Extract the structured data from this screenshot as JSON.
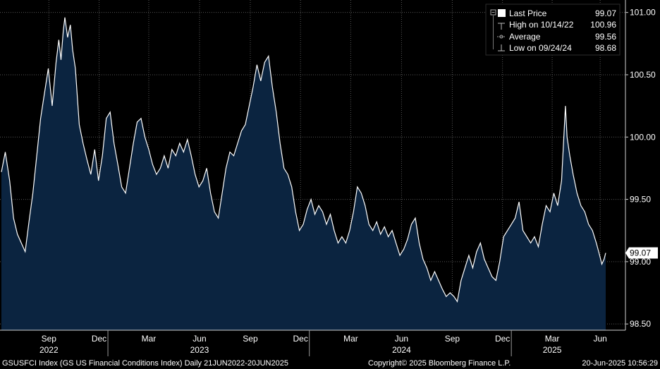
{
  "chart_data": {
    "type": "area",
    "title": "",
    "xlabel": "",
    "ylabel": "",
    "ylim": [
      98.45,
      101.1
    ],
    "y_ticks": [
      "101.00",
      "100.50",
      "100.00",
      "99.50",
      "99.00",
      "98.50"
    ],
    "y_tick_values": [
      101.0,
      100.5,
      100.0,
      99.5,
      99.0,
      98.5
    ],
    "x_range": [
      "2022-06-21",
      "2025-06-20"
    ],
    "month_ticks": [
      {
        "label": "Sep",
        "date": "2022-09-15"
      },
      {
        "label": "Dec",
        "date": "2022-12-15"
      },
      {
        "label": "Mar",
        "date": "2023-03-15"
      },
      {
        "label": "Jun",
        "date": "2023-06-15"
      },
      {
        "label": "Sep",
        "date": "2023-09-15"
      },
      {
        "label": "Dec",
        "date": "2023-12-15"
      },
      {
        "label": "Mar",
        "date": "2024-03-15"
      },
      {
        "label": "Jun",
        "date": "2024-06-15"
      },
      {
        "label": "Sep",
        "date": "2024-09-15"
      },
      {
        "label": "Dec",
        "date": "2024-12-15"
      },
      {
        "label": "Mar",
        "date": "2025-03-15"
      },
      {
        "label": "Jun",
        "date": "2025-06-10"
      }
    ],
    "year_ticks": [
      {
        "label": "2022",
        "date": "2022-09-15"
      },
      {
        "label": "2023",
        "date": "2023-06-15"
      },
      {
        "label": "2024",
        "date": "2024-06-15"
      },
      {
        "label": "2025",
        "date": "2025-03-15"
      }
    ],
    "grid": true,
    "legend_position": "top-right",
    "fill_color": "#0b2440",
    "line_color": "#ffffff",
    "background": "#000000",
    "series": [
      {
        "name": "Last Price",
        "points": [
          [
            "2022-06-21",
            99.72
          ],
          [
            "2022-06-28",
            99.88
          ],
          [
            "2022-07-06",
            99.65
          ],
          [
            "2022-07-13",
            99.35
          ],
          [
            "2022-07-20",
            99.22
          ],
          [
            "2022-07-27",
            99.15
          ],
          [
            "2022-08-03",
            99.08
          ],
          [
            "2022-08-10",
            99.32
          ],
          [
            "2022-08-17",
            99.55
          ],
          [
            "2022-08-24",
            99.85
          ],
          [
            "2022-08-31",
            100.15
          ],
          [
            "2022-09-07",
            100.35
          ],
          [
            "2022-09-14",
            100.55
          ],
          [
            "2022-09-21",
            100.25
          ],
          [
            "2022-09-28",
            100.6
          ],
          [
            "2022-10-03",
            100.78
          ],
          [
            "2022-10-07",
            100.62
          ],
          [
            "2022-10-11",
            100.85
          ],
          [
            "2022-10-14",
            100.96
          ],
          [
            "2022-10-19",
            100.8
          ],
          [
            "2022-10-24",
            100.9
          ],
          [
            "2022-10-28",
            100.7
          ],
          [
            "2022-11-02",
            100.55
          ],
          [
            "2022-11-09",
            100.1
          ],
          [
            "2022-11-16",
            99.95
          ],
          [
            "2022-11-23",
            99.82
          ],
          [
            "2022-11-30",
            99.7
          ],
          [
            "2022-12-07",
            99.9
          ],
          [
            "2022-12-14",
            99.65
          ],
          [
            "2022-12-21",
            99.85
          ],
          [
            "2022-12-28",
            100.15
          ],
          [
            "2023-01-04",
            100.2
          ],
          [
            "2023-01-11",
            99.95
          ],
          [
            "2023-01-18",
            99.78
          ],
          [
            "2023-01-25",
            99.6
          ],
          [
            "2023-02-01",
            99.55
          ],
          [
            "2023-02-08",
            99.75
          ],
          [
            "2023-02-15",
            99.95
          ],
          [
            "2023-02-22",
            100.12
          ],
          [
            "2023-03-01",
            100.15
          ],
          [
            "2023-03-08",
            100.0
          ],
          [
            "2023-03-15",
            99.9
          ],
          [
            "2023-03-22",
            99.78
          ],
          [
            "2023-03-29",
            99.7
          ],
          [
            "2023-04-05",
            99.75
          ],
          [
            "2023-04-12",
            99.85
          ],
          [
            "2023-04-19",
            99.75
          ],
          [
            "2023-04-26",
            99.9
          ],
          [
            "2023-05-03",
            99.85
          ],
          [
            "2023-05-10",
            99.95
          ],
          [
            "2023-05-17",
            99.88
          ],
          [
            "2023-05-24",
            99.98
          ],
          [
            "2023-05-31",
            99.85
          ],
          [
            "2023-06-07",
            99.7
          ],
          [
            "2023-06-14",
            99.6
          ],
          [
            "2023-06-21",
            99.65
          ],
          [
            "2023-06-28",
            99.75
          ],
          [
            "2023-07-05",
            99.55
          ],
          [
            "2023-07-12",
            99.4
          ],
          [
            "2023-07-19",
            99.35
          ],
          [
            "2023-07-26",
            99.55
          ],
          [
            "2023-08-02",
            99.75
          ],
          [
            "2023-08-09",
            99.88
          ],
          [
            "2023-08-16",
            99.85
          ],
          [
            "2023-08-23",
            99.95
          ],
          [
            "2023-08-30",
            100.05
          ],
          [
            "2023-09-06",
            100.1
          ],
          [
            "2023-09-13",
            100.25
          ],
          [
            "2023-09-20",
            100.4
          ],
          [
            "2023-09-27",
            100.58
          ],
          [
            "2023-10-04",
            100.45
          ],
          [
            "2023-10-11",
            100.6
          ],
          [
            "2023-10-18",
            100.65
          ],
          [
            "2023-10-25",
            100.4
          ],
          [
            "2023-11-01",
            100.2
          ],
          [
            "2023-11-08",
            99.95
          ],
          [
            "2023-11-15",
            99.75
          ],
          [
            "2023-11-22",
            99.7
          ],
          [
            "2023-11-29",
            99.6
          ],
          [
            "2023-12-06",
            99.4
          ],
          [
            "2023-12-13",
            99.25
          ],
          [
            "2023-12-20",
            99.3
          ],
          [
            "2023-12-27",
            99.42
          ],
          [
            "2024-01-03",
            99.5
          ],
          [
            "2024-01-10",
            99.38
          ],
          [
            "2024-01-17",
            99.45
          ],
          [
            "2024-01-24",
            99.4
          ],
          [
            "2024-01-31",
            99.3
          ],
          [
            "2024-02-07",
            99.38
          ],
          [
            "2024-02-14",
            99.25
          ],
          [
            "2024-02-21",
            99.15
          ],
          [
            "2024-02-28",
            99.2
          ],
          [
            "2024-03-06",
            99.15
          ],
          [
            "2024-03-13",
            99.25
          ],
          [
            "2024-03-20",
            99.4
          ],
          [
            "2024-03-27",
            99.6
          ],
          [
            "2024-04-03",
            99.55
          ],
          [
            "2024-04-10",
            99.45
          ],
          [
            "2024-04-17",
            99.3
          ],
          [
            "2024-04-24",
            99.25
          ],
          [
            "2024-05-01",
            99.32
          ],
          [
            "2024-05-08",
            99.22
          ],
          [
            "2024-05-15",
            99.28
          ],
          [
            "2024-05-22",
            99.2
          ],
          [
            "2024-05-29",
            99.25
          ],
          [
            "2024-06-05",
            99.15
          ],
          [
            "2024-06-12",
            99.05
          ],
          [
            "2024-06-19",
            99.1
          ],
          [
            "2024-06-26",
            99.18
          ],
          [
            "2024-07-03",
            99.3
          ],
          [
            "2024-07-10",
            99.35
          ],
          [
            "2024-07-17",
            99.15
          ],
          [
            "2024-07-24",
            99.02
          ],
          [
            "2024-07-31",
            98.95
          ],
          [
            "2024-08-07",
            98.85
          ],
          [
            "2024-08-14",
            98.92
          ],
          [
            "2024-08-21",
            98.85
          ],
          [
            "2024-08-28",
            98.78
          ],
          [
            "2024-09-04",
            98.72
          ],
          [
            "2024-09-11",
            98.75
          ],
          [
            "2024-09-18",
            98.72
          ],
          [
            "2024-09-24",
            98.68
          ],
          [
            "2024-10-01",
            98.85
          ],
          [
            "2024-10-08",
            98.95
          ],
          [
            "2024-10-15",
            99.05
          ],
          [
            "2024-10-22",
            98.95
          ],
          [
            "2024-10-29",
            99.08
          ],
          [
            "2024-11-05",
            99.15
          ],
          [
            "2024-11-12",
            99.02
          ],
          [
            "2024-11-19",
            98.95
          ],
          [
            "2024-11-26",
            98.88
          ],
          [
            "2024-12-03",
            98.85
          ],
          [
            "2024-12-10",
            99.0
          ],
          [
            "2024-12-17",
            99.2
          ],
          [
            "2024-12-24",
            99.25
          ],
          [
            "2024-12-31",
            99.3
          ],
          [
            "2025-01-07",
            99.35
          ],
          [
            "2025-01-14",
            99.48
          ],
          [
            "2025-01-21",
            99.25
          ],
          [
            "2025-01-28",
            99.2
          ],
          [
            "2025-02-04",
            99.15
          ],
          [
            "2025-02-11",
            99.2
          ],
          [
            "2025-02-18",
            99.12
          ],
          [
            "2025-02-25",
            99.3
          ],
          [
            "2025-03-04",
            99.45
          ],
          [
            "2025-03-11",
            99.4
          ],
          [
            "2025-03-18",
            99.55
          ],
          [
            "2025-03-25",
            99.45
          ],
          [
            "2025-04-01",
            99.65
          ],
          [
            "2025-04-04",
            99.9
          ],
          [
            "2025-04-08",
            100.25
          ],
          [
            "2025-04-11",
            100.0
          ],
          [
            "2025-04-16",
            99.85
          ],
          [
            "2025-04-22",
            99.7
          ],
          [
            "2025-04-29",
            99.55
          ],
          [
            "2025-05-06",
            99.45
          ],
          [
            "2025-05-13",
            99.4
          ],
          [
            "2025-05-20",
            99.3
          ],
          [
            "2025-05-27",
            99.25
          ],
          [
            "2025-06-03",
            99.15
          ],
          [
            "2025-06-09",
            99.05
          ],
          [
            "2025-06-13",
            98.98
          ],
          [
            "2025-06-17",
            99.02
          ],
          [
            "2025-06-20",
            99.07
          ]
        ]
      }
    ],
    "last_value_label": "99.07"
  },
  "legend": {
    "last_price": {
      "label": "Last Price",
      "value": "99.07"
    },
    "high": {
      "label": "High on 10/14/22",
      "value": "100.96"
    },
    "average": {
      "label": "Average",
      "value": "99.56"
    },
    "low": {
      "label": "Low on 09/24/24",
      "value": "98.68"
    }
  },
  "footer": {
    "left": "GSUSFCI Index (GS US Financial Conditions Index)  Daily 21JUN2022-20JUN2025",
    "center": "Copyright© 2025 Bloomberg Finance L.P.",
    "right": "20-Jun-2025 10:56:29"
  }
}
